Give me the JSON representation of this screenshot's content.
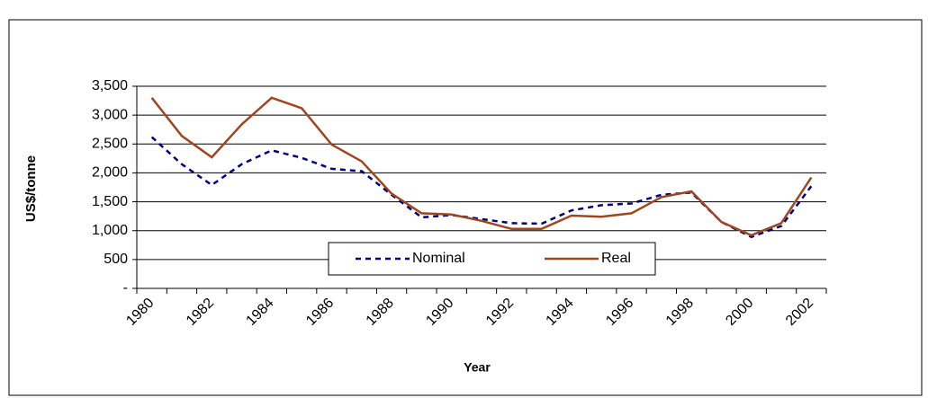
{
  "chart_data": {
    "type": "line",
    "categories": [
      "1980",
      null,
      "1982",
      null,
      "1984",
      null,
      "1986",
      null,
      "1988",
      null,
      "1990",
      null,
      "1992",
      null,
      "1994",
      null,
      "1996",
      null,
      "1998",
      null,
      "2000",
      null,
      "2002"
    ],
    "series": [
      {
        "name": "Nominal",
        "color": "#000080",
        "dash": true,
        "values": [
          2620,
          2150,
          1790,
          2150,
          2390,
          2260,
          2070,
          2030,
          1620,
          1230,
          1270,
          1200,
          1130,
          1120,
          1350,
          1440,
          1470,
          1620,
          1660,
          1150,
          890,
          1080,
          1770
        ]
      },
      {
        "name": "Real",
        "color": "#a0461e",
        "dash": false,
        "values": [
          3300,
          2640,
          2270,
          2840,
          3300,
          3120,
          2490,
          2200,
          1640,
          1300,
          1280,
          1170,
          1030,
          1030,
          1260,
          1240,
          1300,
          1580,
          1680,
          1150,
          920,
          1130,
          1920
        ]
      }
    ],
    "xlabel": "Year",
    "ylabel": "US$/tonne",
    "ylim": [
      0,
      3500
    ],
    "yticks": [
      {
        "value": 0,
        "label": "-"
      },
      500,
      {
        "value": 1000,
        "label": "1,000"
      },
      {
        "value": 1500,
        "label": "1,500"
      },
      {
        "value": 2000,
        "label": "2,000"
      },
      {
        "value": 2500,
        "label": "2,500"
      },
      {
        "value": 3000,
        "label": "3,000"
      },
      {
        "value": 3500,
        "label": "3,500"
      }
    ],
    "grid": true,
    "legend": "bottom"
  }
}
